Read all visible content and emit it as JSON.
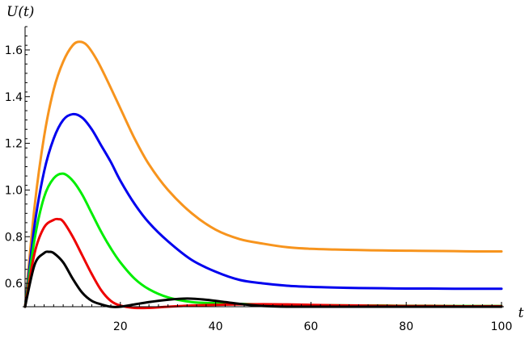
{
  "chart_data": {
    "type": "line",
    "title": "",
    "xlabel": "t",
    "ylabel": "U(t)",
    "xlim": [
      0,
      100
    ],
    "ylim": [
      0.5,
      1.7
    ],
    "x_origin": 0,
    "y_origin": 0.5,
    "xticks": [
      20,
      40,
      60,
      80,
      100
    ],
    "xtick_labels": [
      "20",
      "40",
      "60",
      "80",
      "100"
    ],
    "yticks": [
      0.6,
      0.8,
      1.0,
      1.2,
      1.4,
      1.6
    ],
    "ytick_labels": [
      "0.6",
      "0.8",
      "1.0",
      "1.2",
      "1.4",
      "1.6"
    ],
    "x_minor_step": 2,
    "y_minor_step": 0.04,
    "grid": false,
    "legend": "none",
    "series": [
      {
        "color": "#f7941d",
        "x": [
          0,
          2,
          4,
          6,
          8,
          10,
          11.5,
          13,
          15,
          17,
          20,
          23,
          26,
          30,
          35,
          40,
          45,
          50,
          55,
          60,
          65,
          70,
          75,
          80,
          85,
          90,
          95,
          100
        ],
        "y": [
          0.5,
          0.93,
          1.23,
          1.43,
          1.55,
          1.62,
          1.635,
          1.62,
          1.56,
          1.48,
          1.35,
          1.22,
          1.11,
          1.0,
          0.9,
          0.83,
          0.79,
          0.77,
          0.755,
          0.748,
          0.745,
          0.743,
          0.741,
          0.74,
          0.739,
          0.738,
          0.737,
          0.737
        ]
      },
      {
        "color": "#0000ee",
        "x": [
          0,
          2,
          4,
          6,
          8,
          10,
          12,
          14,
          16,
          18,
          20,
          23,
          26,
          30,
          35,
          40,
          45,
          50,
          55,
          60,
          65,
          70,
          75,
          80,
          85,
          90,
          95,
          100
        ],
        "y": [
          0.5,
          0.85,
          1.08,
          1.22,
          1.3,
          1.325,
          1.31,
          1.26,
          1.19,
          1.12,
          1.04,
          0.94,
          0.86,
          0.78,
          0.7,
          0.65,
          0.615,
          0.6,
          0.59,
          0.585,
          0.582,
          0.58,
          0.579,
          0.578,
          0.578,
          0.577,
          0.577,
          0.577
        ]
      },
      {
        "color": "#00ee00",
        "x": [
          0,
          2,
          4,
          6,
          8,
          10,
          12,
          14,
          16,
          18,
          20,
          23,
          26,
          30,
          35,
          40,
          45,
          50,
          55,
          60,
          65,
          70,
          75,
          80,
          85,
          90,
          95,
          100
        ],
        "y": [
          0.5,
          0.79,
          0.97,
          1.05,
          1.07,
          1.04,
          0.98,
          0.9,
          0.82,
          0.75,
          0.69,
          0.62,
          0.575,
          0.54,
          0.52,
          0.515,
          0.512,
          0.51,
          0.508,
          0.507,
          0.506,
          0.505,
          0.505,
          0.504,
          0.504,
          0.503,
          0.503,
          0.503
        ]
      },
      {
        "color": "#ee0000",
        "x": [
          0,
          2,
          4,
          6,
          7,
          8,
          10,
          12,
          14,
          16,
          18,
          20,
          23,
          26,
          30,
          35,
          40,
          45,
          50,
          55,
          60,
          65,
          70,
          75,
          80,
          85,
          90,
          95,
          100
        ],
        "y": [
          0.5,
          0.73,
          0.84,
          0.872,
          0.875,
          0.865,
          0.8,
          0.72,
          0.64,
          0.57,
          0.525,
          0.505,
          0.495,
          0.495,
          0.5,
          0.505,
          0.508,
          0.51,
          0.511,
          0.51,
          0.508,
          0.506,
          0.505,
          0.504,
          0.503,
          0.503,
          0.502,
          0.502,
          0.502
        ]
      },
      {
        "color": "#000000",
        "x": [
          0,
          2,
          4,
          5,
          6,
          8,
          10,
          12,
          14,
          16,
          18,
          20,
          23,
          26,
          30,
          34,
          38,
          42,
          46,
          50,
          55,
          60,
          65,
          70,
          75,
          80,
          85,
          90,
          95,
          100
        ],
        "y": [
          0.5,
          0.68,
          0.73,
          0.735,
          0.73,
          0.69,
          0.62,
          0.56,
          0.525,
          0.51,
          0.5,
          0.5,
          0.51,
          0.52,
          0.53,
          0.535,
          0.53,
          0.52,
          0.51,
          0.503,
          0.5,
          0.5,
          0.5,
          0.5,
          0.5,
          0.5,
          0.5,
          0.5,
          0.5,
          0.5
        ]
      }
    ]
  }
}
